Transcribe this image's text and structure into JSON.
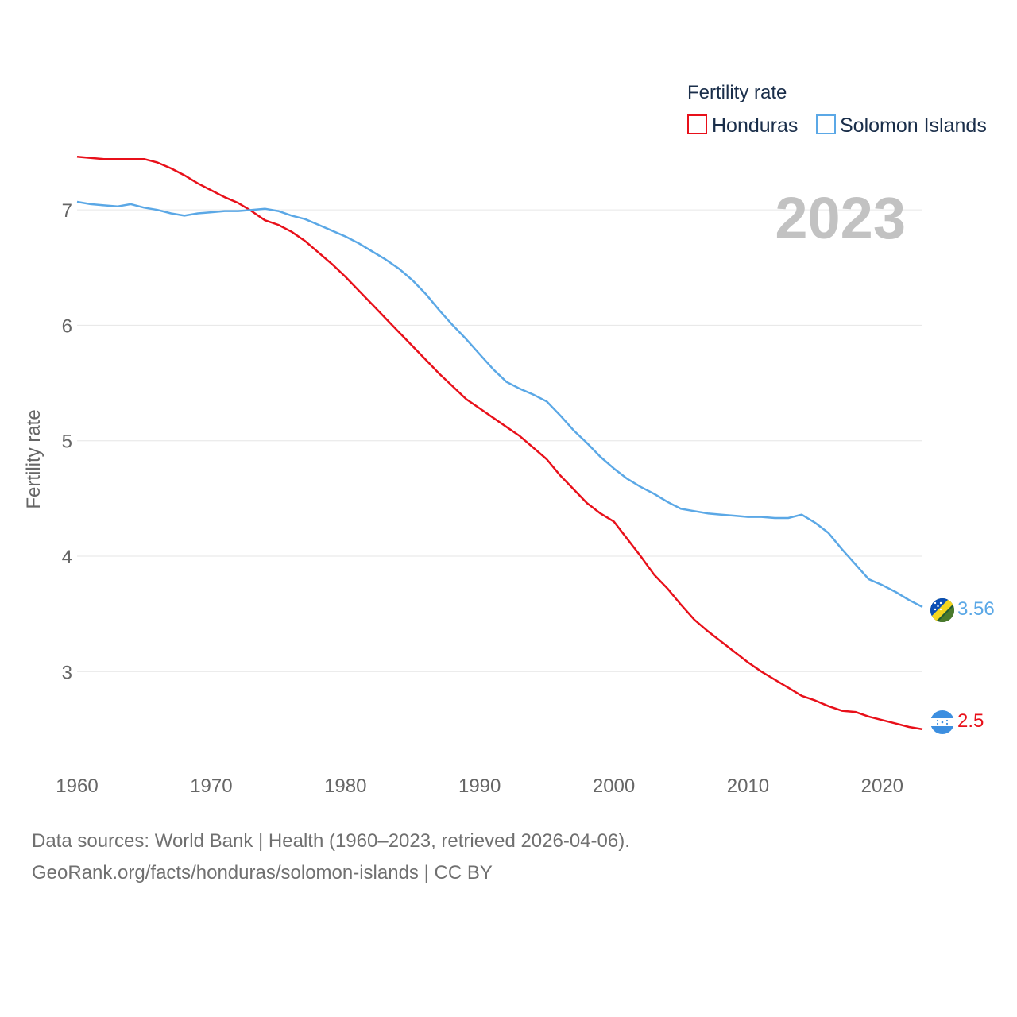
{
  "chart_data": {
    "type": "line",
    "legend_title": "Fertility rate",
    "ylabel": "Fertility rate",
    "year_label": "2023",
    "xlim": [
      1960,
      2023
    ],
    "ylim": [
      2.1,
      7.6
    ],
    "x_ticks": [
      1960,
      1970,
      1980,
      1990,
      2000,
      2010,
      2020
    ],
    "y_ticks": [
      3,
      4,
      5,
      6,
      7
    ],
    "x": [
      1960,
      1961,
      1962,
      1963,
      1964,
      1965,
      1966,
      1967,
      1968,
      1969,
      1970,
      1971,
      1972,
      1973,
      1974,
      1975,
      1976,
      1977,
      1978,
      1979,
      1980,
      1981,
      1982,
      1983,
      1984,
      1985,
      1986,
      1987,
      1988,
      1989,
      1990,
      1991,
      1992,
      1993,
      1994,
      1995,
      1996,
      1997,
      1998,
      1999,
      2000,
      2001,
      2002,
      2003,
      2004,
      2005,
      2006,
      2007,
      2008,
      2009,
      2010,
      2011,
      2012,
      2013,
      2014,
      2015,
      2016,
      2017,
      2018,
      2019,
      2020,
      2021,
      2022,
      2023
    ],
    "series": [
      {
        "name": "Honduras",
        "color": "#e8101a",
        "end_label": "2.5",
        "values": [
          7.46,
          7.45,
          7.44,
          7.44,
          7.44,
          7.44,
          7.41,
          7.36,
          7.3,
          7.23,
          7.17,
          7.11,
          7.06,
          6.99,
          6.91,
          6.87,
          6.81,
          6.73,
          6.63,
          6.53,
          6.42,
          6.3,
          6.18,
          6.06,
          5.94,
          5.82,
          5.7,
          5.58,
          5.47,
          5.36,
          5.28,
          5.2,
          5.12,
          5.04,
          4.94,
          4.84,
          4.7,
          4.58,
          4.46,
          4.37,
          4.3,
          4.15,
          4.0,
          3.84,
          3.72,
          3.58,
          3.45,
          3.35,
          3.26,
          3.17,
          3.08,
          3.0,
          2.93,
          2.86,
          2.79,
          2.75,
          2.7,
          2.66,
          2.65,
          2.61,
          2.58,
          2.55,
          2.52,
          2.5
        ]
      },
      {
        "name": "Solomon Islands",
        "color": "#5ba8e6",
        "end_label": "3.56",
        "values": [
          7.07,
          7.05,
          7.04,
          7.03,
          7.05,
          7.02,
          7.0,
          6.97,
          6.95,
          6.97,
          6.98,
          6.99,
          6.99,
          7.0,
          7.01,
          6.99,
          6.95,
          6.92,
          6.87,
          6.82,
          6.77,
          6.71,
          6.64,
          6.57,
          6.49,
          6.39,
          6.27,
          6.13,
          6.0,
          5.88,
          5.75,
          5.62,
          5.51,
          5.45,
          5.4,
          5.34,
          5.22,
          5.09,
          4.98,
          4.86,
          4.76,
          4.67,
          4.6,
          4.54,
          4.47,
          4.41,
          4.39,
          4.37,
          4.36,
          4.35,
          4.34,
          4.34,
          4.33,
          4.33,
          4.36,
          4.29,
          4.2,
          4.06,
          3.93,
          3.8,
          3.75,
          3.69,
          3.62,
          3.56
        ]
      }
    ]
  },
  "footer": {
    "line1": "Data sources: World Bank | Health (1960–2023, retrieved 2026-04-06).",
    "line2": "GeoRank.org/facts/honduras/solomon-islands | CC BY"
  },
  "icons": {
    "honduras_flag": "honduras-flag-icon",
    "solomon_flag": "solomon-islands-flag-icon"
  }
}
